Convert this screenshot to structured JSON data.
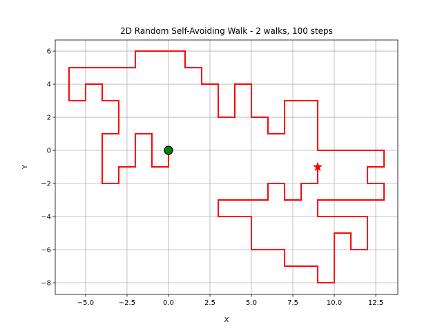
{
  "chart_data": {
    "type": "line",
    "title": "2D Random Self-Avoiding Walk - 2 walks, 100 steps",
    "x_label": "X",
    "y_label": "Y",
    "series": [
      {
        "color": "#ff0000",
        "x": [
          0,
          0,
          -1,
          -1,
          -2,
          -2,
          -3,
          -3,
          -4,
          -4,
          -3,
          -3,
          -4,
          -4,
          -5,
          -5,
          -6,
          -6,
          -2,
          -2,
          1,
          1,
          2,
          2,
          3,
          3,
          4,
          4,
          5,
          5,
          6,
          6,
          7,
          7,
          9,
          9,
          13,
          13,
          12,
          12,
          13,
          13,
          9,
          9,
          12,
          12,
          11,
          11,
          10,
          10,
          9,
          9,
          7,
          7,
          5,
          5,
          3,
          3,
          6,
          6,
          7,
          7,
          8,
          8,
          9,
          9
        ],
        "values": [
          0,
          -1,
          -1,
          1,
          1,
          -1,
          -1,
          -2,
          -2,
          1,
          1,
          3,
          3,
          4,
          4,
          3,
          3,
          5,
          5,
          6,
          6,
          5,
          5,
          4,
          4,
          2,
          2,
          4,
          4,
          2,
          2,
          1,
          1,
          3,
          3,
          0,
          0,
          -1,
          -1,
          -2,
          -2,
          -3,
          -3,
          -4,
          -4,
          -6,
          -6,
          -5,
          -5,
          -8,
          -8,
          -7,
          -7,
          -6,
          -6,
          -4,
          -4,
          -3,
          -3,
          -2,
          -2,
          -3,
          -3,
          -2,
          -2,
          -1
        ]
      }
    ],
    "markers": [
      {
        "x": 0,
        "y": 0,
        "shape": "circle",
        "color": "#008000"
      },
      {
        "x": 9,
        "y": -1,
        "shape": "star",
        "color": "#ff0000"
      }
    ],
    "xlim": [
      -6.83,
      13.83
    ],
    "ylim": [
      -8.71,
      6.67
    ],
    "xticks": [
      {
        "value": -5,
        "label": "−5.0"
      },
      {
        "value": -2.5,
        "label": "−2.5"
      },
      {
        "value": 0,
        "label": "0.0"
      },
      {
        "value": 2.5,
        "label": "2.5"
      },
      {
        "value": 5,
        "label": "5.0"
      },
      {
        "value": 7.5,
        "label": "7.5"
      },
      {
        "value": 10,
        "label": "10.0"
      },
      {
        "value": 12.5,
        "label": "12.5"
      }
    ],
    "yticks": [
      {
        "value": -8,
        "label": "−8"
      },
      {
        "value": -6,
        "label": "−6"
      },
      {
        "value": -4,
        "label": "−4"
      },
      {
        "value": -2,
        "label": "−2"
      },
      0,
      2,
      4,
      6
    ],
    "grid": true
  }
}
